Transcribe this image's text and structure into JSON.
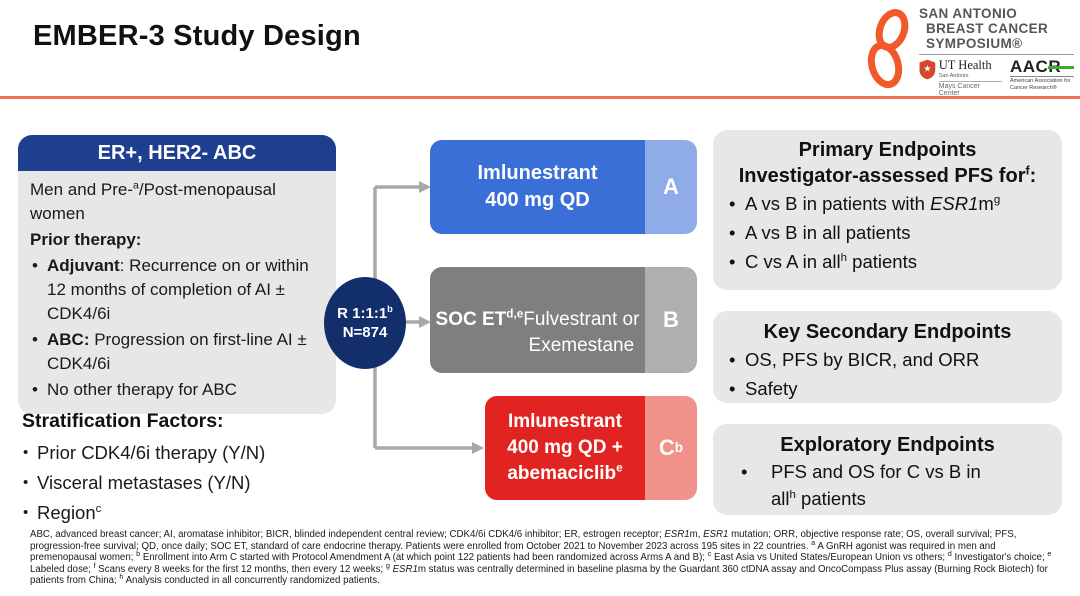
{
  "colors": {
    "accent_orange_rule": "#ED7452",
    "navy_header": "#1E3F8F",
    "navy_circle": "#132F6B",
    "arm_a_blue": "#3A6FD8",
    "arm_a_light": "#8FACE8",
    "arm_b_gray": "#7F7F7F",
    "arm_b_light": "#AFAFAF",
    "arm_c_red": "#E12421",
    "arm_c_light": "#F0918A",
    "panel_gray": "#E7E7E7",
    "arrow_gray": "#A8A8A8",
    "sabcs_ribbon_orange": "#F05A28",
    "aacr_green": "#3DAE2B"
  },
  "header": {
    "title": "EMBER-3 Study Design",
    "logo": {
      "name_line1": "SAN ANTONIO",
      "name_line2": "BREAST CANCER",
      "name_line3": "SYMPOSIUM®",
      "ut_health": "UT Health",
      "ut_city": "San Antonio",
      "ut_center": "Mays Cancer Center",
      "aacr_acronym": "AACR",
      "aacr_full": "American Association for Cancer Research®"
    }
  },
  "population_box": {
    "header": "ER+, HER2- ABC",
    "intro_html": "Men and Pre-<sup>a</sup>/Post-menopausal women",
    "prior_therapy_label": "Prior therapy:",
    "bullets_html": [
      "<b>Adjuvant</b>: Recurrence on or within 12 months of completion of AI ± CDK4/6i",
      "<b>ABC:</b> Progression on first-line AI ± CDK4/6i",
      "No other therapy for ABC"
    ]
  },
  "stratification": {
    "heading": "Stratification Factors:",
    "items_html": [
      "Prior CDK4/6i therapy (Y/N)",
      "Visceral metastases (Y/N)",
      "Region<sup>c</sup>"
    ]
  },
  "randomization": {
    "ratio_html": "R 1:1:1<sup>b</sup>",
    "n_label": "N=874"
  },
  "arms": [
    {
      "label_html": "<b>Imlunestrant<br>400 mg QD</b>",
      "letter_html": "A"
    },
    {
      "label_html": "<b>SOC ET<sup>d,e</sup></b><br>Fulvestrant or<br>Exemestane",
      "letter_html": "B"
    },
    {
      "label_html": "<b>Imlunestrant<br>400 mg QD +<br>abemaciclib<sup>e</sup></b>",
      "letter_html": "C<sup>b</sup>"
    }
  ],
  "endpoints": {
    "primary": {
      "title": "Primary Endpoints",
      "subtitle_html": "Investigator-assessed PFS for<sup>f</sup>:",
      "bullets_html": [
        "A vs B in patients with <i>ESR1</i>m<sup>g</sup>",
        "A vs B in all patients",
        "C vs A in all<sup>h</sup> patients"
      ]
    },
    "key_secondary": {
      "title": "Key Secondary Endpoints",
      "bullets_html": [
        "OS, PFS by BICR, and ORR",
        "Safety"
      ]
    },
    "exploratory": {
      "title": "Exploratory Endpoints",
      "bullets_html": [
        "PFS and OS for C vs B in<br>all<sup>h</sup> patients"
      ]
    }
  },
  "footnote_html": "ABC, advanced breast cancer; AI, aromatase inhibitor; BICR, blinded independent central review; CDK4/6i CDK4/6 inhibitor; ER, estrogen receptor; <i>ESR1</i>m, <i>ESR1</i> mutation; ORR, objective response rate; OS, overall survival; PFS, progression-free survival; QD, once daily; SOC ET, standard of care endocrine therapy. Patients were enrolled from October 2021 to November 2023 across 195 sites in 22 countries. <sup>a</sup> A GnRH agonist was required in men and premenopausal women; <sup>b</sup> Enrollment into Arm C started with Protocol Amendment A (at which point 122 patients had been randomized across Arms A and B); <sup>c</sup> East Asia vs United States/European Union vs others; <sup>d</sup> Investigator's choice; <sup>e</sup> Labeled dose; <sup>f</sup> Scans every 8 weeks for the first 12 months, then every 12 weeks; <sup>g</sup> <i>ESR1</i>m status was centrally determined in baseline plasma by the Guardant 360 ctDNA assay and OncoCompass Plus assay (Burning Rock Biotech) for patients from China; <sup>h</sup> Analysis conducted in all concurrently randomized patients."
}
